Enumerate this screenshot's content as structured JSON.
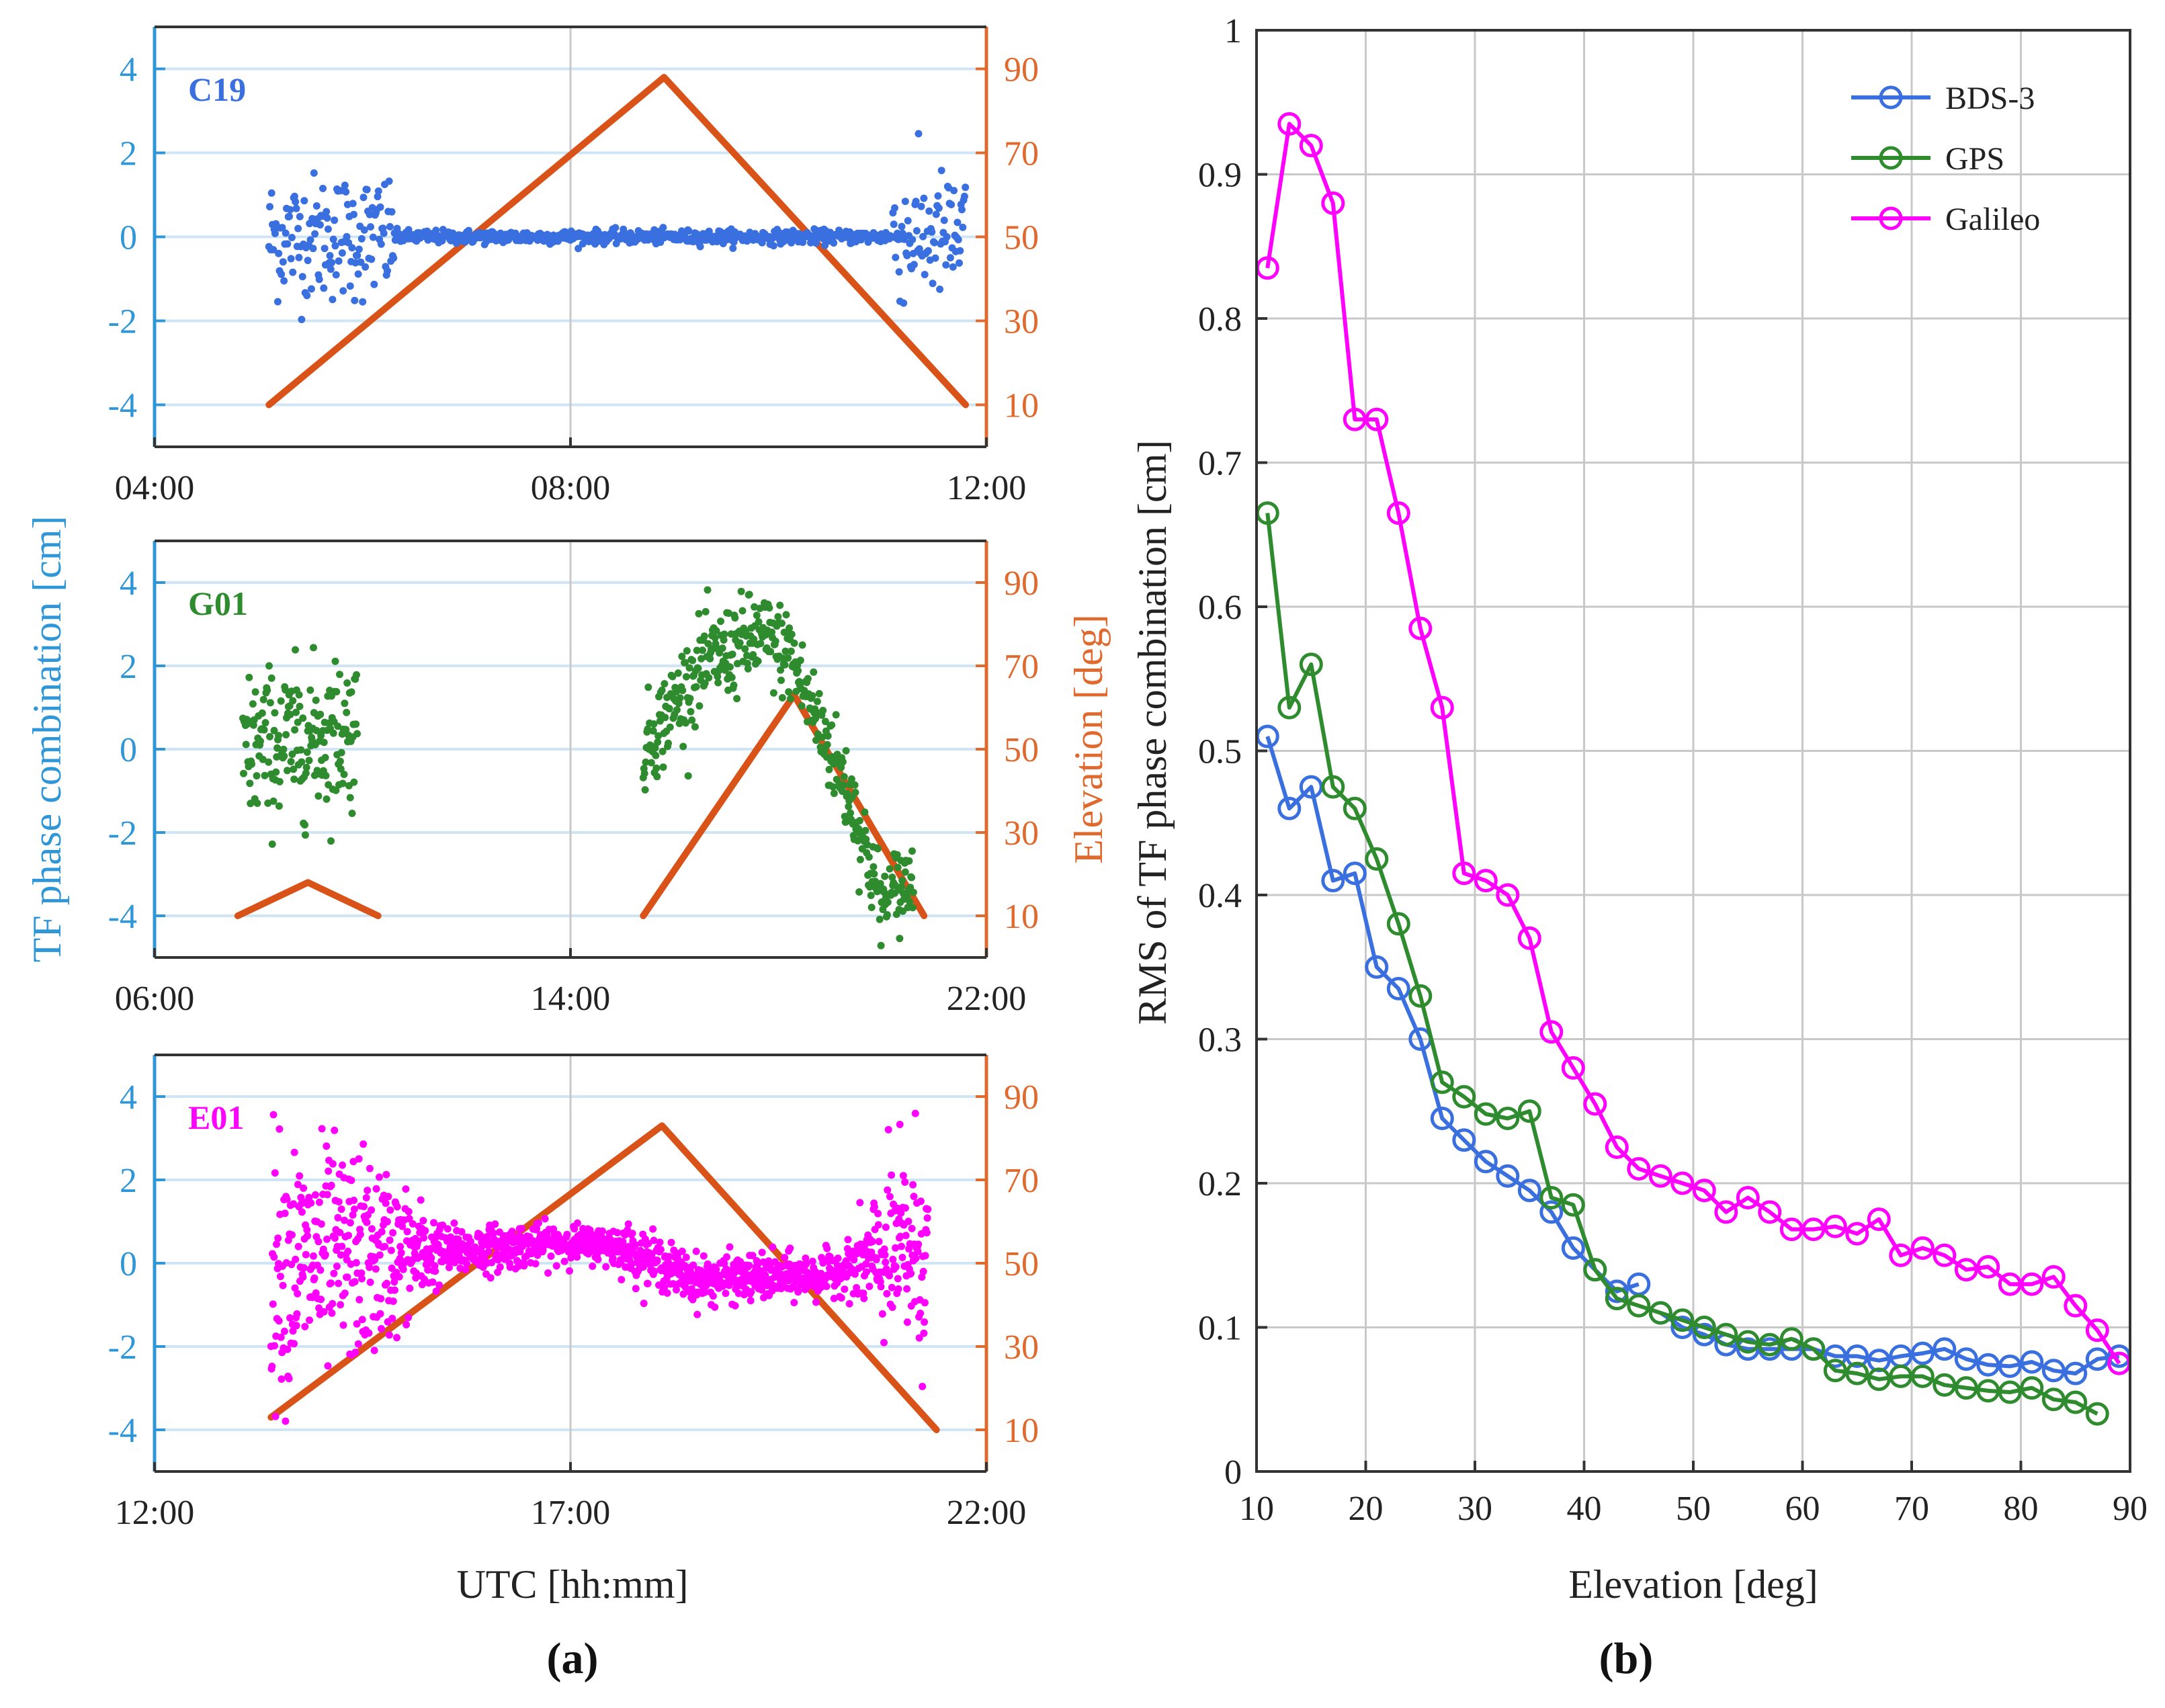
{
  "figure": {
    "left_ylabel": "TF phase  combination [cm]",
    "right_ylabel": "Elevation [deg]",
    "left_xlabel": "UTC [hh:mm]",
    "caption_a": "(a)",
    "caption_b": "(b)"
  },
  "colors": {
    "left_axis": "#2f97d8",
    "right_axis": "#e0692e",
    "elevation_line": "#d95319",
    "bds": "#3a6fe0",
    "gps": "#2e8b2e",
    "galileo": "#ff00ff",
    "grid_h": "#cfe4f5",
    "grid_v": "#c8c8c8"
  },
  "chart_data": [
    {
      "type": "scatter",
      "panel": "a-top",
      "label": "C19",
      "label_color": "#3a6fe0",
      "x_tick_labels": [
        "04:00",
        "08:00",
        "12:00"
      ],
      "x_range_hours": [
        4,
        12
      ],
      "y_left_ticks": [
        "4",
        "2",
        "0",
        "-2",
        "-4"
      ],
      "y_left_range": [
        -5,
        5
      ],
      "y_right_ticks": [
        "90",
        "70",
        "50",
        "30",
        "10"
      ],
      "y_right_range": [
        0,
        100
      ],
      "scatter": {
        "x_start": 5.1,
        "x_end": 11.8,
        "noise_edges": [
          [
            5.1,
            6.3,
            0.75
          ],
          [
            11.1,
            11.8,
            0.75
          ]
        ],
        "noise_mid": 0.08,
        "trend": 0.0
      },
      "elevation": {
        "x": [
          5.1,
          8.9,
          11.8
        ],
        "y": [
          10,
          88,
          10
        ]
      }
    },
    {
      "type": "scatter",
      "panel": "a-middle",
      "label": "G01",
      "label_color": "#2e8b2e",
      "x_tick_labels": [
        "06:00",
        "14:00",
        "22:00"
      ],
      "x_range_hours": [
        6,
        22
      ],
      "y_left_ticks": [
        "4",
        "2",
        "0",
        "-2",
        "-4"
      ],
      "y_left_range": [
        -5,
        5
      ],
      "y_right_ticks": [
        "90",
        "70",
        "50",
        "30",
        "10"
      ],
      "y_right_range": [
        0,
        100
      ],
      "scatter_segments": [
        {
          "x": [
            7.7,
            9.9
          ],
          "trend_x": [
            7.7,
            8.8,
            9.9
          ],
          "trend_y": [
            0.0,
            0.2,
            0.5
          ],
          "noise": 0.9
        },
        {
          "x": [
            15.4,
            20.6
          ],
          "trend_x": [
            15.4,
            16.5,
            17.6,
            18.2,
            19.4,
            20.0,
            20.6
          ],
          "trend_y": [
            0.0,
            2.0,
            2.7,
            2.3,
            -1.2,
            -3.8,
            -3.0
          ],
          "noise": 0.55
        }
      ],
      "elevation_segments": [
        {
          "x": [
            7.6,
            8.95,
            10.3
          ],
          "y": [
            10,
            18,
            10
          ]
        },
        {
          "x": [
            15.4,
            18.3,
            20.8
          ],
          "y": [
            10,
            63,
            10
          ]
        }
      ]
    },
    {
      "type": "scatter",
      "panel": "a-bottom",
      "label": "E01",
      "label_color": "#ff00ff",
      "x_tick_labels": [
        "12:00",
        "17:00",
        "22:00"
      ],
      "x_range_hours": [
        12,
        22
      ],
      "y_left_ticks": [
        "4",
        "2",
        "0",
        "-2",
        "-4"
      ],
      "y_left_range": [
        -5,
        5
      ],
      "y_right_ticks": [
        "90",
        "70",
        "50",
        "30",
        "10"
      ],
      "y_right_range": [
        0,
        100
      ],
      "scatter": {
        "x_start": 13.4,
        "x_end": 21.3,
        "trend_x": [
          13.4,
          15.0,
          17.0,
          17.6,
          18.5,
          20.0,
          20.6,
          21.3
        ],
        "trend_y": [
          0.0,
          0.2,
          0.5,
          0.4,
          -0.4,
          -0.3,
          0.0,
          0.5
        ],
        "noise_x": [
          13.4,
          14.6,
          15.5,
          17.3,
          17.7,
          20.3,
          20.8,
          21.3
        ],
        "noise_y": [
          1.5,
          1.2,
          0.3,
          0.2,
          0.3,
          0.25,
          1.0,
          1.6
        ]
      },
      "elevation": {
        "x": [
          13.4,
          18.1,
          21.4
        ],
        "y": [
          13,
          83,
          10
        ]
      }
    },
    {
      "type": "line",
      "panel": "b",
      "xlabel": "Elevation [deg]",
      "ylabel": "RMS of TF phase combination [cm]",
      "xlim": [
        10,
        90
      ],
      "ylim": [
        0,
        1
      ],
      "x_ticks": [
        10,
        20,
        30,
        40,
        50,
        60,
        70,
        80,
        90
      ],
      "x_tick_labels": [
        "10",
        "20",
        "30",
        "40",
        "50",
        "60",
        "70",
        "80",
        "90"
      ],
      "y_ticks": [
        0,
        0.1,
        0.2,
        0.3,
        0.4,
        0.5,
        0.6,
        0.7,
        0.8,
        0.9,
        1
      ],
      "y_tick_labels": [
        "0",
        "0.1",
        "0.2",
        "0.3",
        "0.4",
        "0.5",
        "0.6",
        "0.7",
        "0.8",
        "0.9",
        "1"
      ],
      "grid": true,
      "legend": "top-right",
      "series": [
        {
          "name": "BDS-3",
          "color": "#3a6fe0",
          "x": [
            11,
            13,
            15,
            17,
            19,
            21,
            23,
            25,
            27,
            29,
            31,
            33,
            35,
            37,
            39,
            41,
            43,
            45
          ],
          "y": [
            0.51,
            0.46,
            0.475,
            0.41,
            0.415,
            0.35,
            0.335,
            0.3,
            0.245,
            0.23,
            0.215,
            0.205,
            0.195,
            0.18,
            0.155,
            0.14,
            0.125,
            0.13
          ],
          "x2": [
            47,
            49,
            51,
            53,
            55,
            57,
            59,
            61,
            63,
            65,
            67,
            69,
            71,
            73,
            75,
            77,
            79,
            81,
            83,
            85,
            87,
            89
          ],
          "y2": [
            0.11,
            0.1,
            0.095,
            0.088,
            0.085,
            0.085,
            0.085,
            0.085,
            0.08,
            0.08,
            0.077,
            0.08,
            0.082,
            0.085,
            0.078,
            0.074,
            0.073,
            0.076,
            0.07,
            0.068,
            0.078,
            0.08
          ]
        },
        {
          "name": "GPS",
          "color": "#2e8b2e",
          "x": [
            11,
            13,
            15,
            17,
            19,
            21,
            23,
            25,
            27,
            29,
            31,
            33,
            35,
            37,
            39,
            41,
            43,
            45,
            47,
            49,
            51,
            53,
            55,
            57,
            59,
            61,
            63,
            65,
            67,
            69,
            71,
            73,
            75,
            77,
            79,
            81,
            83,
            85,
            87
          ],
          "y": [
            0.665,
            0.53,
            0.56,
            0.475,
            0.46,
            0.425,
            0.38,
            0.33,
            0.27,
            0.26,
            0.248,
            0.245,
            0.25,
            0.19,
            0.185,
            0.14,
            0.12,
            0.115,
            0.11,
            0.105,
            0.1,
            0.095,
            0.09,
            0.088,
            0.092,
            0.085,
            0.07,
            0.068,
            0.064,
            0.066,
            0.066,
            0.06,
            0.058,
            0.056,
            0.055,
            0.058,
            0.05,
            0.048,
            0.04
          ]
        },
        {
          "name": "Galileo",
          "color": "#ff00ff",
          "x": [
            11,
            13,
            15,
            17,
            19,
            21,
            23,
            25,
            27,
            29,
            31,
            33,
            35,
            37,
            39,
            41,
            43,
            45,
            47,
            49,
            51,
            53,
            55,
            57,
            59,
            61,
            63,
            65,
            67,
            69,
            71,
            73,
            75,
            77,
            79,
            81,
            83,
            85,
            87,
            89
          ],
          "y": [
            0.835,
            0.935,
            0.92,
            0.88,
            0.73,
            0.73,
            0.665,
            0.585,
            0.53,
            0.415,
            0.41,
            0.4,
            0.37,
            0.305,
            0.28,
            0.255,
            0.225,
            0.21,
            0.205,
            0.2,
            0.195,
            0.18,
            0.19,
            0.18,
            0.168,
            0.168,
            0.17,
            0.165,
            0.175,
            0.15,
            0.155,
            0.15,
            0.14,
            0.142,
            0.13,
            0.13,
            0.135,
            0.115,
            0.098,
            0.075
          ]
        }
      ]
    }
  ]
}
